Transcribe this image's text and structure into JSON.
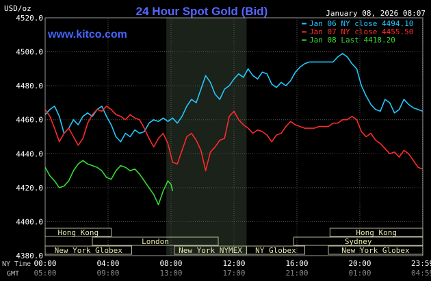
{
  "chart_data": {
    "type": "line",
    "title": "24 Hour Spot Gold (Bid)",
    "brand": "www.kitco.com",
    "unit": "USD/oz",
    "timestamp": "January 08, 2026 08:07",
    "y_ticks": [
      "4520.0",
      "4500.0",
      "4480.0",
      "4460.0",
      "4440.0",
      "4420.0",
      "4400.0",
      "4380.0"
    ],
    "ylim": [
      4380,
      4520
    ],
    "xlim": [
      0,
      24
    ],
    "grid": true,
    "legend_position": "top-right",
    "x_ticks_ny": [
      {
        "x": 0,
        "label": "00:00"
      },
      {
        "x": 4,
        "label": "04:00"
      },
      {
        "x": 8,
        "label": "08:00"
      },
      {
        "x": 12,
        "label": "12:00"
      },
      {
        "x": 16,
        "label": "16:00"
      },
      {
        "x": 20,
        "label": "20:00"
      },
      {
        "x": 23.98,
        "label": "23:59"
      }
    ],
    "x_ticks_gmt": [
      {
        "x": 0,
        "label": "05:00"
      },
      {
        "x": 4,
        "label": "09:00"
      },
      {
        "x": 8,
        "label": "13:00"
      },
      {
        "x": 12,
        "label": "17:00"
      },
      {
        "x": 16,
        "label": "21:00"
      },
      {
        "x": 20,
        "label": "01:00"
      },
      {
        "x": 23.98,
        "label": "04:59"
      }
    ],
    "x_label_ny": "NY Time",
    "x_label_gmt": "GMT",
    "shaded_region": [
      7.7,
      12.8
    ],
    "market_sessions": [
      {
        "name": "Hong Kong",
        "start": 0,
        "end": 4.2,
        "row": 0
      },
      {
        "name": "Hong Kong",
        "start": 18.1,
        "end": 24,
        "row": 0
      },
      {
        "name": "London",
        "start": 3.0,
        "end": 11.0,
        "row": 1
      },
      {
        "name": "Sydney",
        "start": 15.8,
        "end": 24,
        "row": 1
      },
      {
        "name": "New York Globex",
        "start": 0,
        "end": 5.5,
        "row": 2
      },
      {
        "name": "New York NYMEX",
        "start": 8.2,
        "end": 12.8,
        "row": 2
      },
      {
        "name": "NY Globex",
        "start": 12.8,
        "end": 16.5,
        "row": 2
      },
      {
        "name": "New York Globex",
        "start": 18.0,
        "end": 24,
        "row": 2
      }
    ],
    "series": [
      {
        "name": "Jan 06 NY close 4494.10",
        "color": "#22c8ff",
        "points": [
          [
            0,
            4463
          ],
          [
            0.3,
            4466
          ],
          [
            0.6,
            4468
          ],
          [
            0.9,
            4462
          ],
          [
            1.2,
            4452
          ],
          [
            1.5,
            4455
          ],
          [
            1.8,
            4460
          ],
          [
            2.1,
            4457
          ],
          [
            2.4,
            4462
          ],
          [
            2.7,
            4464
          ],
          [
            3.0,
            4462
          ],
          [
            3.3,
            4466
          ],
          [
            3.6,
            4468
          ],
          [
            3.9,
            4462
          ],
          [
            4.2,
            4457
          ],
          [
            4.5,
            4450
          ],
          [
            4.8,
            4447
          ],
          [
            5.1,
            4452
          ],
          [
            5.4,
            4450
          ],
          [
            5.7,
            4454
          ],
          [
            6.0,
            4452
          ],
          [
            6.3,
            4453
          ],
          [
            6.6,
            4458
          ],
          [
            6.9,
            4460
          ],
          [
            7.2,
            4459
          ],
          [
            7.5,
            4461
          ],
          [
            7.8,
            4459
          ],
          [
            8.1,
            4461
          ],
          [
            8.4,
            4458
          ],
          [
            8.7,
            4462
          ],
          [
            9.0,
            4468
          ],
          [
            9.3,
            4472
          ],
          [
            9.6,
            4470
          ],
          [
            9.9,
            4478
          ],
          [
            10.2,
            4486
          ],
          [
            10.5,
            4482
          ],
          [
            10.8,
            4475
          ],
          [
            11.1,
            4472
          ],
          [
            11.4,
            4478
          ],
          [
            11.7,
            4480
          ],
          [
            12.0,
            4484
          ],
          [
            12.3,
            4487
          ],
          [
            12.6,
            4485
          ],
          [
            12.9,
            4490
          ],
          [
            13.2,
            4486
          ],
          [
            13.5,
            4484
          ],
          [
            13.8,
            4488
          ],
          [
            14.1,
            4487
          ],
          [
            14.4,
            4481
          ],
          [
            14.7,
            4479
          ],
          [
            15.0,
            4482
          ],
          [
            15.3,
            4480
          ],
          [
            15.6,
            4483
          ],
          [
            15.9,
            4488
          ],
          [
            16.2,
            4491
          ],
          [
            16.5,
            4493
          ],
          [
            16.8,
            4494
          ],
          [
            17.1,
            4494
          ],
          [
            17.4,
            4494
          ],
          [
            17.7,
            4494
          ],
          [
            18.0,
            4494
          ],
          [
            18.3,
            4494
          ],
          [
            18.6,
            4497
          ],
          [
            18.9,
            4499
          ],
          [
            19.2,
            4497
          ],
          [
            19.5,
            4493
          ],
          [
            19.8,
            4490
          ],
          [
            20.1,
            4480
          ],
          [
            20.4,
            4474
          ],
          [
            20.7,
            4469
          ],
          [
            21.0,
            4466
          ],
          [
            21.3,
            4465
          ],
          [
            21.6,
            4472
          ],
          [
            21.9,
            4470
          ],
          [
            22.2,
            4464
          ],
          [
            22.5,
            4466
          ],
          [
            22.8,
            4472
          ],
          [
            23.1,
            4469
          ],
          [
            23.4,
            4467
          ],
          [
            23.7,
            4466
          ],
          [
            23.98,
            4465
          ]
        ]
      },
      {
        "name": "Jan 07 NY close 4455.50",
        "color": "#ff2a2a",
        "points": [
          [
            0,
            4466
          ],
          [
            0.3,
            4462
          ],
          [
            0.6,
            4455
          ],
          [
            0.9,
            4447
          ],
          [
            1.2,
            4452
          ],
          [
            1.5,
            4455
          ],
          [
            1.8,
            4450
          ],
          [
            2.1,
            4445
          ],
          [
            2.4,
            4449
          ],
          [
            2.7,
            4458
          ],
          [
            3.0,
            4463
          ],
          [
            3.3,
            4466
          ],
          [
            3.6,
            4465
          ],
          [
            3.9,
            4468
          ],
          [
            4.2,
            4466
          ],
          [
            4.5,
            4463
          ],
          [
            4.8,
            4462
          ],
          [
            5.1,
            4460
          ],
          [
            5.4,
            4463
          ],
          [
            5.7,
            4461
          ],
          [
            6.0,
            4460
          ],
          [
            6.3,
            4455
          ],
          [
            6.6,
            4449
          ],
          [
            6.9,
            4444
          ],
          [
            7.2,
            4449
          ],
          [
            7.5,
            4452
          ],
          [
            7.8,
            4446
          ],
          [
            8.1,
            4435
          ],
          [
            8.4,
            4434
          ],
          [
            8.7,
            4442
          ],
          [
            9.0,
            4450
          ],
          [
            9.3,
            4452
          ],
          [
            9.6,
            4448
          ],
          [
            9.9,
            4442
          ],
          [
            10.2,
            4430
          ],
          [
            10.5,
            4441
          ],
          [
            10.8,
            4444
          ],
          [
            11.1,
            4448
          ],
          [
            11.4,
            4449
          ],
          [
            11.7,
            4462
          ],
          [
            12.0,
            4465
          ],
          [
            12.3,
            4460
          ],
          [
            12.6,
            4457
          ],
          [
            12.9,
            4455
          ],
          [
            13.2,
            4452
          ],
          [
            13.5,
            4454
          ],
          [
            13.8,
            4453
          ],
          [
            14.1,
            4451
          ],
          [
            14.4,
            4447
          ],
          [
            14.7,
            4451
          ],
          [
            15.0,
            4452
          ],
          [
            15.3,
            4456
          ],
          [
            15.6,
            4459
          ],
          [
            15.9,
            4457
          ],
          [
            16.2,
            4456
          ],
          [
            16.5,
            4455
          ],
          [
            16.8,
            4455
          ],
          [
            17.1,
            4455
          ],
          [
            17.4,
            4456
          ],
          [
            17.7,
            4456
          ],
          [
            18.0,
            4456
          ],
          [
            18.3,
            4458
          ],
          [
            18.6,
            4458
          ],
          [
            18.9,
            4460
          ],
          [
            19.2,
            4460
          ],
          [
            19.5,
            4462
          ],
          [
            19.8,
            4460
          ],
          [
            20.1,
            4453
          ],
          [
            20.4,
            4450
          ],
          [
            20.7,
            4452
          ],
          [
            21.0,
            4448
          ],
          [
            21.3,
            4446
          ],
          [
            21.6,
            4443
          ],
          [
            21.9,
            4440
          ],
          [
            22.2,
            4441
          ],
          [
            22.5,
            4438
          ],
          [
            22.8,
            4442
          ],
          [
            23.1,
            4440
          ],
          [
            23.4,
            4436
          ],
          [
            23.7,
            4432
          ],
          [
            23.98,
            4431
          ]
        ]
      },
      {
        "name": "Jan 08 Last 4418.20",
        "color": "#33dd33",
        "points": [
          [
            0,
            4432
          ],
          [
            0.3,
            4427
          ],
          [
            0.6,
            4424
          ],
          [
            0.9,
            4420
          ],
          [
            1.2,
            4421
          ],
          [
            1.5,
            4424
          ],
          [
            1.8,
            4430
          ],
          [
            2.1,
            4434
          ],
          [
            2.4,
            4436
          ],
          [
            2.7,
            4434
          ],
          [
            3.0,
            4433
          ],
          [
            3.3,
            4432
          ],
          [
            3.6,
            4430
          ],
          [
            3.9,
            4426
          ],
          [
            4.2,
            4425
          ],
          [
            4.5,
            4430
          ],
          [
            4.8,
            4433
          ],
          [
            5.1,
            4432
          ],
          [
            5.4,
            4430
          ],
          [
            5.7,
            4431
          ],
          [
            6.0,
            4428
          ],
          [
            6.3,
            4424
          ],
          [
            6.6,
            4420
          ],
          [
            6.9,
            4416
          ],
          [
            7.2,
            4410
          ],
          [
            7.5,
            4418
          ],
          [
            7.8,
            4424
          ],
          [
            8.0,
            4422
          ],
          [
            8.1,
            4418
          ]
        ]
      }
    ]
  }
}
